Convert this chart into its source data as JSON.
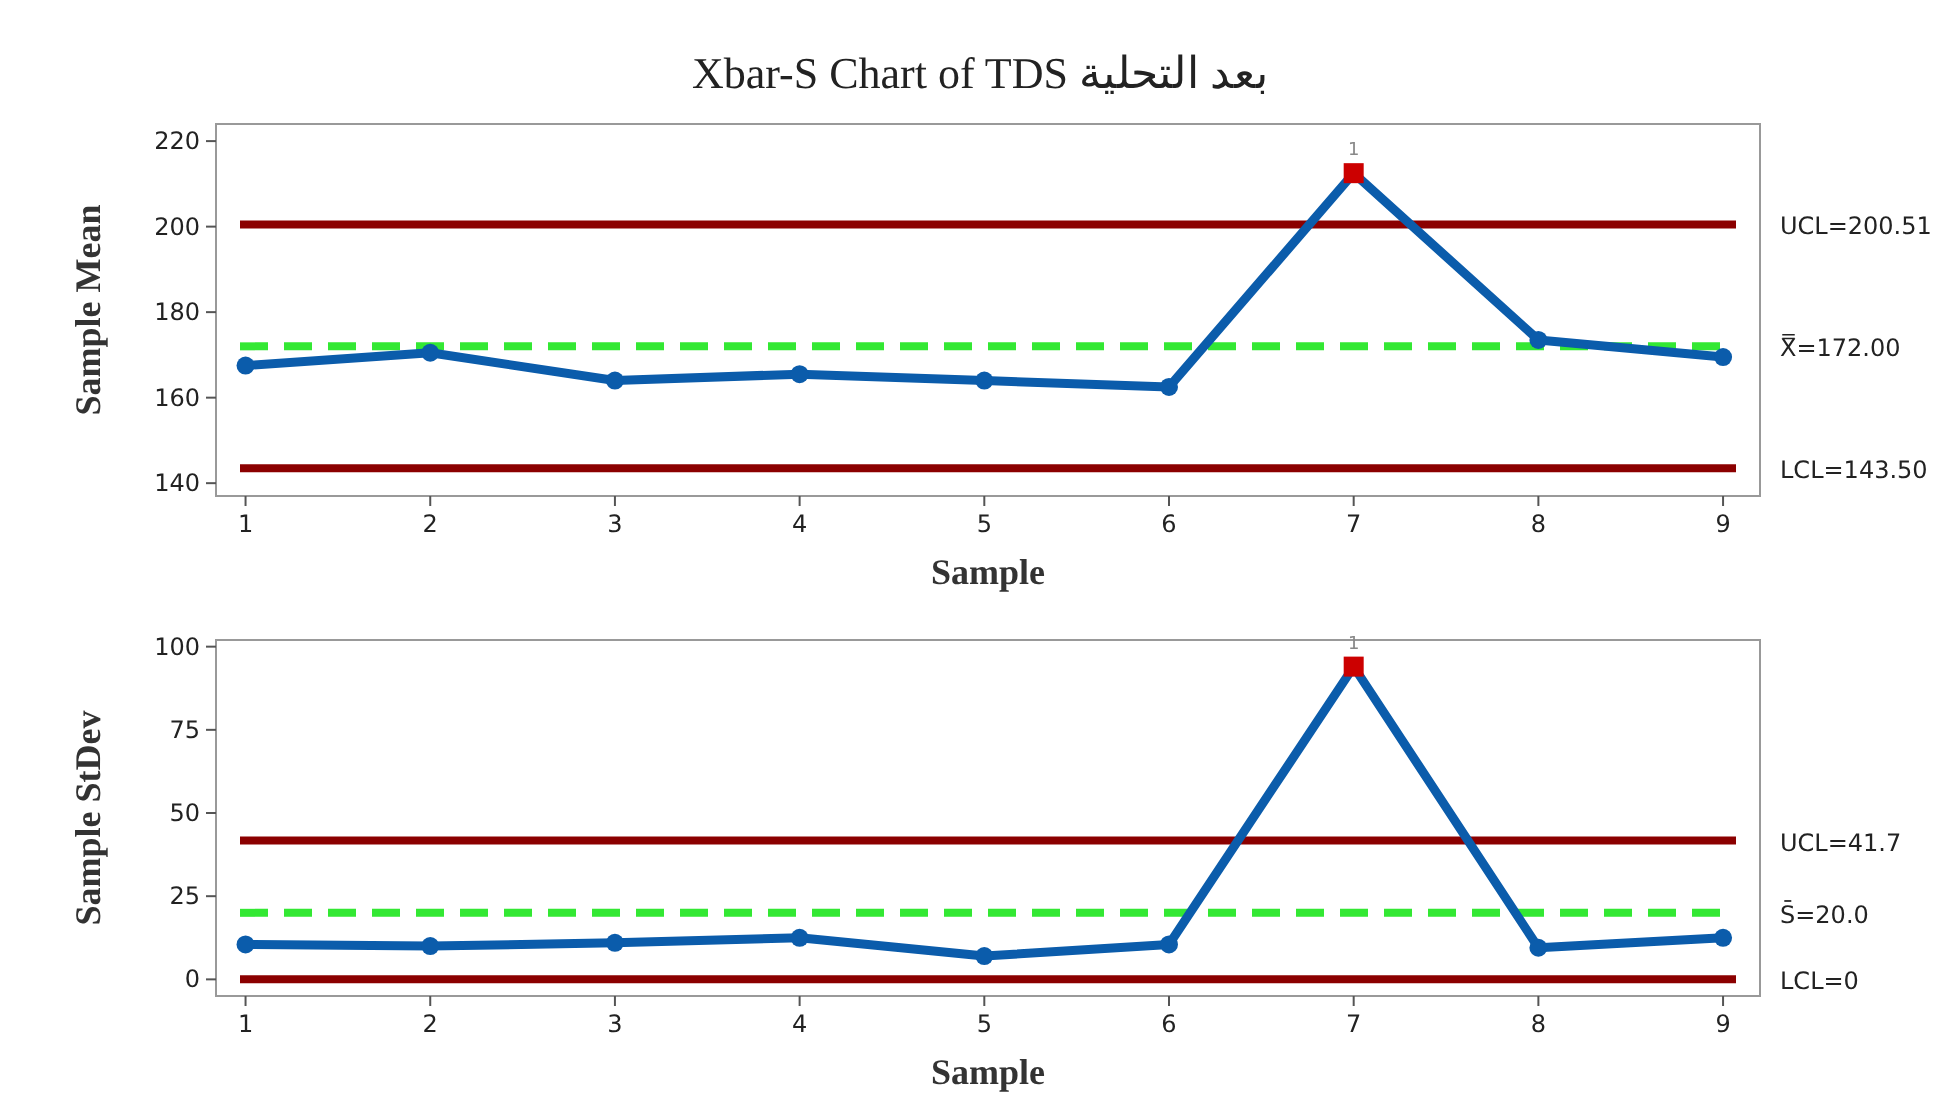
{
  "chart_data": [
    {
      "type": "line",
      "title": "Xbar-S Chart of TDS بعد التحلية",
      "xlabel": "Sample",
      "ylabel": "Sample Mean",
      "x": [
        1,
        2,
        3,
        4,
        5,
        6,
        7,
        8,
        9
      ],
      "xlim": [
        0.84,
        9.2
      ],
      "xticks": [
        1,
        2,
        3,
        4,
        5,
        6,
        7,
        8,
        9
      ],
      "ylim": [
        137,
        224
      ],
      "yticks": [
        140,
        160,
        180,
        200,
        220
      ],
      "marker": "circle",
      "line_style": "solid",
      "grid": false,
      "series": [
        {
          "color": "#0b5cab",
          "values": [
            167.5,
            170.5,
            164,
            165.5,
            164,
            162.5,
            212.5,
            173.5,
            169.5
          ]
        },
        {
          "type": "scatter",
          "marker": "square",
          "color": "#cc0000",
          "x": [
            7
          ],
          "values": [
            212.5
          ]
        }
      ],
      "ref_lines": [
        {
          "axis": "y",
          "value": 200.51,
          "label": "UCL=200.51",
          "color": "#8b0000",
          "line_style": "solid"
        },
        {
          "axis": "y",
          "value": 172,
          "label": "X̿=172.00",
          "color": "#33e833",
          "line_style": "dashed"
        },
        {
          "axis": "y",
          "value": 143.5,
          "label": "LCL=143.50",
          "color": "#8b0000",
          "line_style": "solid"
        }
      ],
      "annotations": [
        {
          "text": "1",
          "x": 7,
          "y": 212.5
        }
      ]
    },
    {
      "type": "line",
      "xlabel": "Sample",
      "ylabel": "Sample StDev",
      "x": [
        1,
        2,
        3,
        4,
        5,
        6,
        7,
        8,
        9
      ],
      "xlim": [
        0.84,
        9.2
      ],
      "xticks": [
        1,
        2,
        3,
        4,
        5,
        6,
        7,
        8,
        9
      ],
      "ylim": [
        -5,
        102
      ],
      "yticks": [
        0,
        25,
        50,
        75,
        100
      ],
      "marker": "circle",
      "line_style": "solid",
      "grid": false,
      "series": [
        {
          "color": "#0b5cab",
          "values": [
            10.5,
            10,
            11,
            12.5,
            7,
            10.5,
            94,
            9.5,
            12.5
          ]
        },
        {
          "type": "scatter",
          "marker": "square",
          "color": "#cc0000",
          "x": [
            7
          ],
          "values": [
            94
          ]
        }
      ],
      "ref_lines": [
        {
          "axis": "y",
          "value": 41.7,
          "label": "UCL=41.7",
          "color": "#8b0000",
          "line_style": "solid"
        },
        {
          "axis": "y",
          "value": 20,
          "label": "S̄=20.0",
          "color": "#33e833",
          "line_style": "dashed"
        },
        {
          "axis": "y",
          "value": 0,
          "label": "LCL=0",
          "color": "#8b0000",
          "line_style": "solid"
        }
      ],
      "annotations": [
        {
          "text": "1",
          "x": 7,
          "y": 94
        }
      ]
    }
  ]
}
